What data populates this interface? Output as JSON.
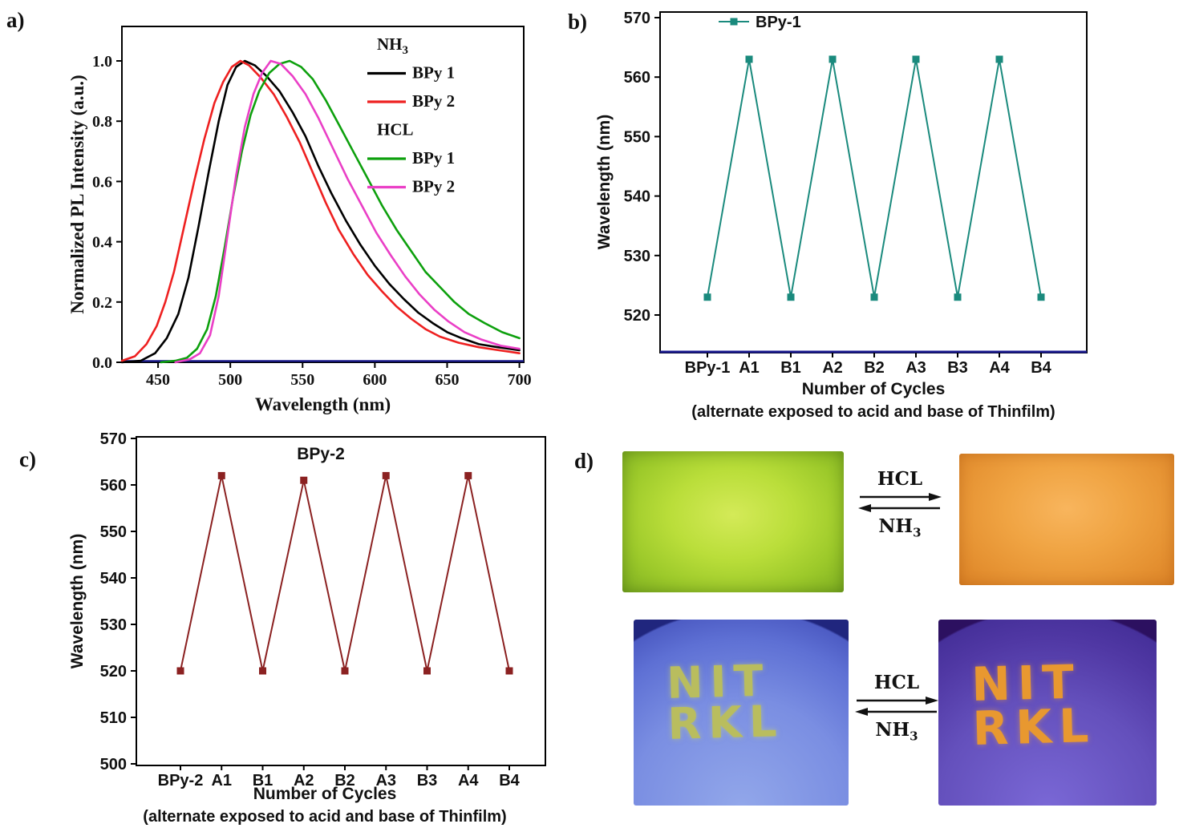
{
  "panels": {
    "a": {
      "label": "a)"
    },
    "b": {
      "label": "b)"
    },
    "c": {
      "label": "c)"
    },
    "d": {
      "label": "d)"
    }
  },
  "colors": {
    "axis_accent_navy": "#1b1b8e",
    "film_green": "#a8d030",
    "film_orange": "#eda03f",
    "dish_blue": "#6e82dc",
    "dish_purple": "#5a44b0",
    "stamp_yellow_green": "#b9bd5e",
    "stamp_orange": "#e89830"
  },
  "chart_data": [
    {
      "id": "pl-spectra",
      "type": "line",
      "xlabel": "Wavelength (nm)",
      "ylabel": "Normalized PL Intensity (a.u.)",
      "xlim": [
        425,
        703
      ],
      "ylim": [
        0,
        1.12
      ],
      "xticks": [
        450,
        500,
        550,
        600,
        650,
        700
      ],
      "yticks": [
        0.0,
        0.2,
        0.4,
        0.6,
        0.8,
        1.0
      ],
      "ytick_labels": [
        "0.0",
        "0.2",
        "0.4",
        "0.6",
        "0.8",
        "1.0"
      ],
      "grid": false,
      "legend_position": "upper-right-inside",
      "legend_headers": [
        {
          "text": "NH",
          "sub": "3"
        },
        {
          "text": "HCL",
          "sub": ""
        }
      ],
      "series": [
        {
          "name": "BPy 1",
          "group": "NH3",
          "color": "#000000",
          "points": [
            [
              425,
              0
            ],
            [
              438,
              0.005
            ],
            [
              448,
              0.03
            ],
            [
              456,
              0.08
            ],
            [
              464,
              0.16
            ],
            [
              471,
              0.28
            ],
            [
              478,
              0.45
            ],
            [
              485,
              0.63
            ],
            [
              492,
              0.8
            ],
            [
              498,
              0.92
            ],
            [
              504,
              0.98
            ],
            [
              510,
              1.0
            ],
            [
              517,
              0.985
            ],
            [
              525,
              0.95
            ],
            [
              534,
              0.9
            ],
            [
              543,
              0.83
            ],
            [
              552,
              0.75
            ],
            [
              561,
              0.65
            ],
            [
              570,
              0.56
            ],
            [
              580,
              0.47
            ],
            [
              590,
              0.39
            ],
            [
              600,
              0.32
            ],
            [
              610,
              0.26
            ],
            [
              620,
              0.21
            ],
            [
              630,
              0.165
            ],
            [
              640,
              0.13
            ],
            [
              650,
              0.1
            ],
            [
              660,
              0.08
            ],
            [
              672,
              0.06
            ],
            [
              685,
              0.05
            ],
            [
              700,
              0.04
            ]
          ]
        },
        {
          "name": "BPy 2",
          "group": "NH3",
          "color": "#ee2020",
          "points": [
            [
              425,
              0.005
            ],
            [
              434,
              0.02
            ],
            [
              442,
              0.06
            ],
            [
              449,
              0.12
            ],
            [
              455,
              0.2
            ],
            [
              461,
              0.3
            ],
            [
              468,
              0.45
            ],
            [
              475,
              0.6
            ],
            [
              482,
              0.74
            ],
            [
              489,
              0.86
            ],
            [
              495,
              0.93
            ],
            [
              501,
              0.98
            ],
            [
              507,
              1.0
            ],
            [
              513,
              0.985
            ],
            [
              521,
              0.945
            ],
            [
              530,
              0.89
            ],
            [
              539,
              0.815
            ],
            [
              548,
              0.73
            ],
            [
              557,
              0.63
            ],
            [
              566,
              0.53
            ],
            [
              575,
              0.44
            ],
            [
              585,
              0.36
            ],
            [
              595,
              0.29
            ],
            [
              605,
              0.235
            ],
            [
              615,
              0.185
            ],
            [
              625,
              0.145
            ],
            [
              635,
              0.11
            ],
            [
              645,
              0.085
            ],
            [
              658,
              0.065
            ],
            [
              672,
              0.05
            ],
            [
              686,
              0.04
            ],
            [
              700,
              0.03
            ]
          ]
        },
        {
          "name": "BPy 1",
          "group": "HCL",
          "color": "#0da00d",
          "points": [
            [
              452,
              0
            ],
            [
              462,
              0.005
            ],
            [
              470,
              0.015
            ],
            [
              477,
              0.045
            ],
            [
              484,
              0.11
            ],
            [
              490,
              0.22
            ],
            [
              496,
              0.38
            ],
            [
              502,
              0.55
            ],
            [
              508,
              0.7
            ],
            [
              514,
              0.82
            ],
            [
              520,
              0.9
            ],
            [
              527,
              0.96
            ],
            [
              534,
              0.99
            ],
            [
              541,
              1.0
            ],
            [
              549,
              0.98
            ],
            [
              557,
              0.94
            ],
            [
              566,
              0.87
            ],
            [
              575,
              0.79
            ],
            [
              585,
              0.7
            ],
            [
              595,
              0.61
            ],
            [
              605,
              0.52
            ],
            [
              615,
              0.44
            ],
            [
              625,
              0.37
            ],
            [
              635,
              0.3
            ],
            [
              645,
              0.25
            ],
            [
              655,
              0.2
            ],
            [
              665,
              0.16
            ],
            [
              676,
              0.13
            ],
            [
              688,
              0.1
            ],
            [
              700,
              0.08
            ]
          ]
        },
        {
          "name": "BPy 2",
          "group": "HCL",
          "color": "#ea3fc6",
          "points": [
            [
              462,
              0
            ],
            [
              472,
              0.01
            ],
            [
              479,
              0.03
            ],
            [
              486,
              0.09
            ],
            [
              492,
              0.22
            ],
            [
              498,
              0.42
            ],
            [
              504,
              0.62
            ],
            [
              510,
              0.78
            ],
            [
              516,
              0.89
            ],
            [
              522,
              0.96
            ],
            [
              528,
              1.0
            ],
            [
              535,
              0.99
            ],
            [
              543,
              0.95
            ],
            [
              552,
              0.89
            ],
            [
              561,
              0.81
            ],
            [
              571,
              0.71
            ],
            [
              581,
              0.61
            ],
            [
              591,
              0.52
            ],
            [
              601,
              0.43
            ],
            [
              611,
              0.355
            ],
            [
              621,
              0.285
            ],
            [
              631,
              0.225
            ],
            [
              641,
              0.175
            ],
            [
              651,
              0.135
            ],
            [
              662,
              0.1
            ],
            [
              674,
              0.075
            ],
            [
              687,
              0.055
            ],
            [
              700,
              0.045
            ]
          ]
        }
      ]
    },
    {
      "id": "cycles-bpy1",
      "type": "line",
      "legend_label": "BPy-1",
      "xlabel": "Number of Cycles",
      "xlabel2": "(alternate exposed to acid and base of Thinfilm)",
      "ylabel": "Wavelength (nm)",
      "categories": [
        "BPy-1",
        "A1",
        "B1",
        "A2",
        "B2",
        "A3",
        "B3",
        "A4",
        "B4"
      ],
      "values": [
        523,
        563,
        523,
        563,
        523,
        563,
        523,
        563,
        523
      ],
      "yticks": [
        520,
        530,
        540,
        550,
        560,
        570
      ],
      "ylim": [
        513,
        571
      ],
      "grid": false,
      "marker": "square",
      "color": "#1a8a7d"
    },
    {
      "id": "cycles-bpy2",
      "type": "line",
      "title": "BPy-2",
      "xlabel": "Number of Cycles",
      "xlabel2": "(alternate exposed to acid and base of Thinfilm)",
      "ylabel": "Wavelength (nm)",
      "categories": [
        "BPy-2",
        "A1",
        "B1",
        "A2",
        "B2",
        "A3",
        "B3",
        "A4",
        "B4"
      ],
      "values": [
        520,
        562,
        520,
        561,
        520,
        562,
        520,
        562,
        520
      ],
      "yticks": [
        500,
        510,
        520,
        530,
        540,
        550,
        560,
        570
      ],
      "ylim": [
        500,
        570
      ],
      "grid": false,
      "marker": "square",
      "color": "#8b2121"
    }
  ],
  "panel_d": {
    "reactions": [
      {
        "forward": "HCL",
        "reverse_base": "NH",
        "reverse_sub": "3"
      },
      {
        "forward": "HCL",
        "reverse_base": "NH",
        "reverse_sub": "3"
      }
    ],
    "stamp": {
      "line1": "NIT",
      "line2": "RKL"
    }
  }
}
